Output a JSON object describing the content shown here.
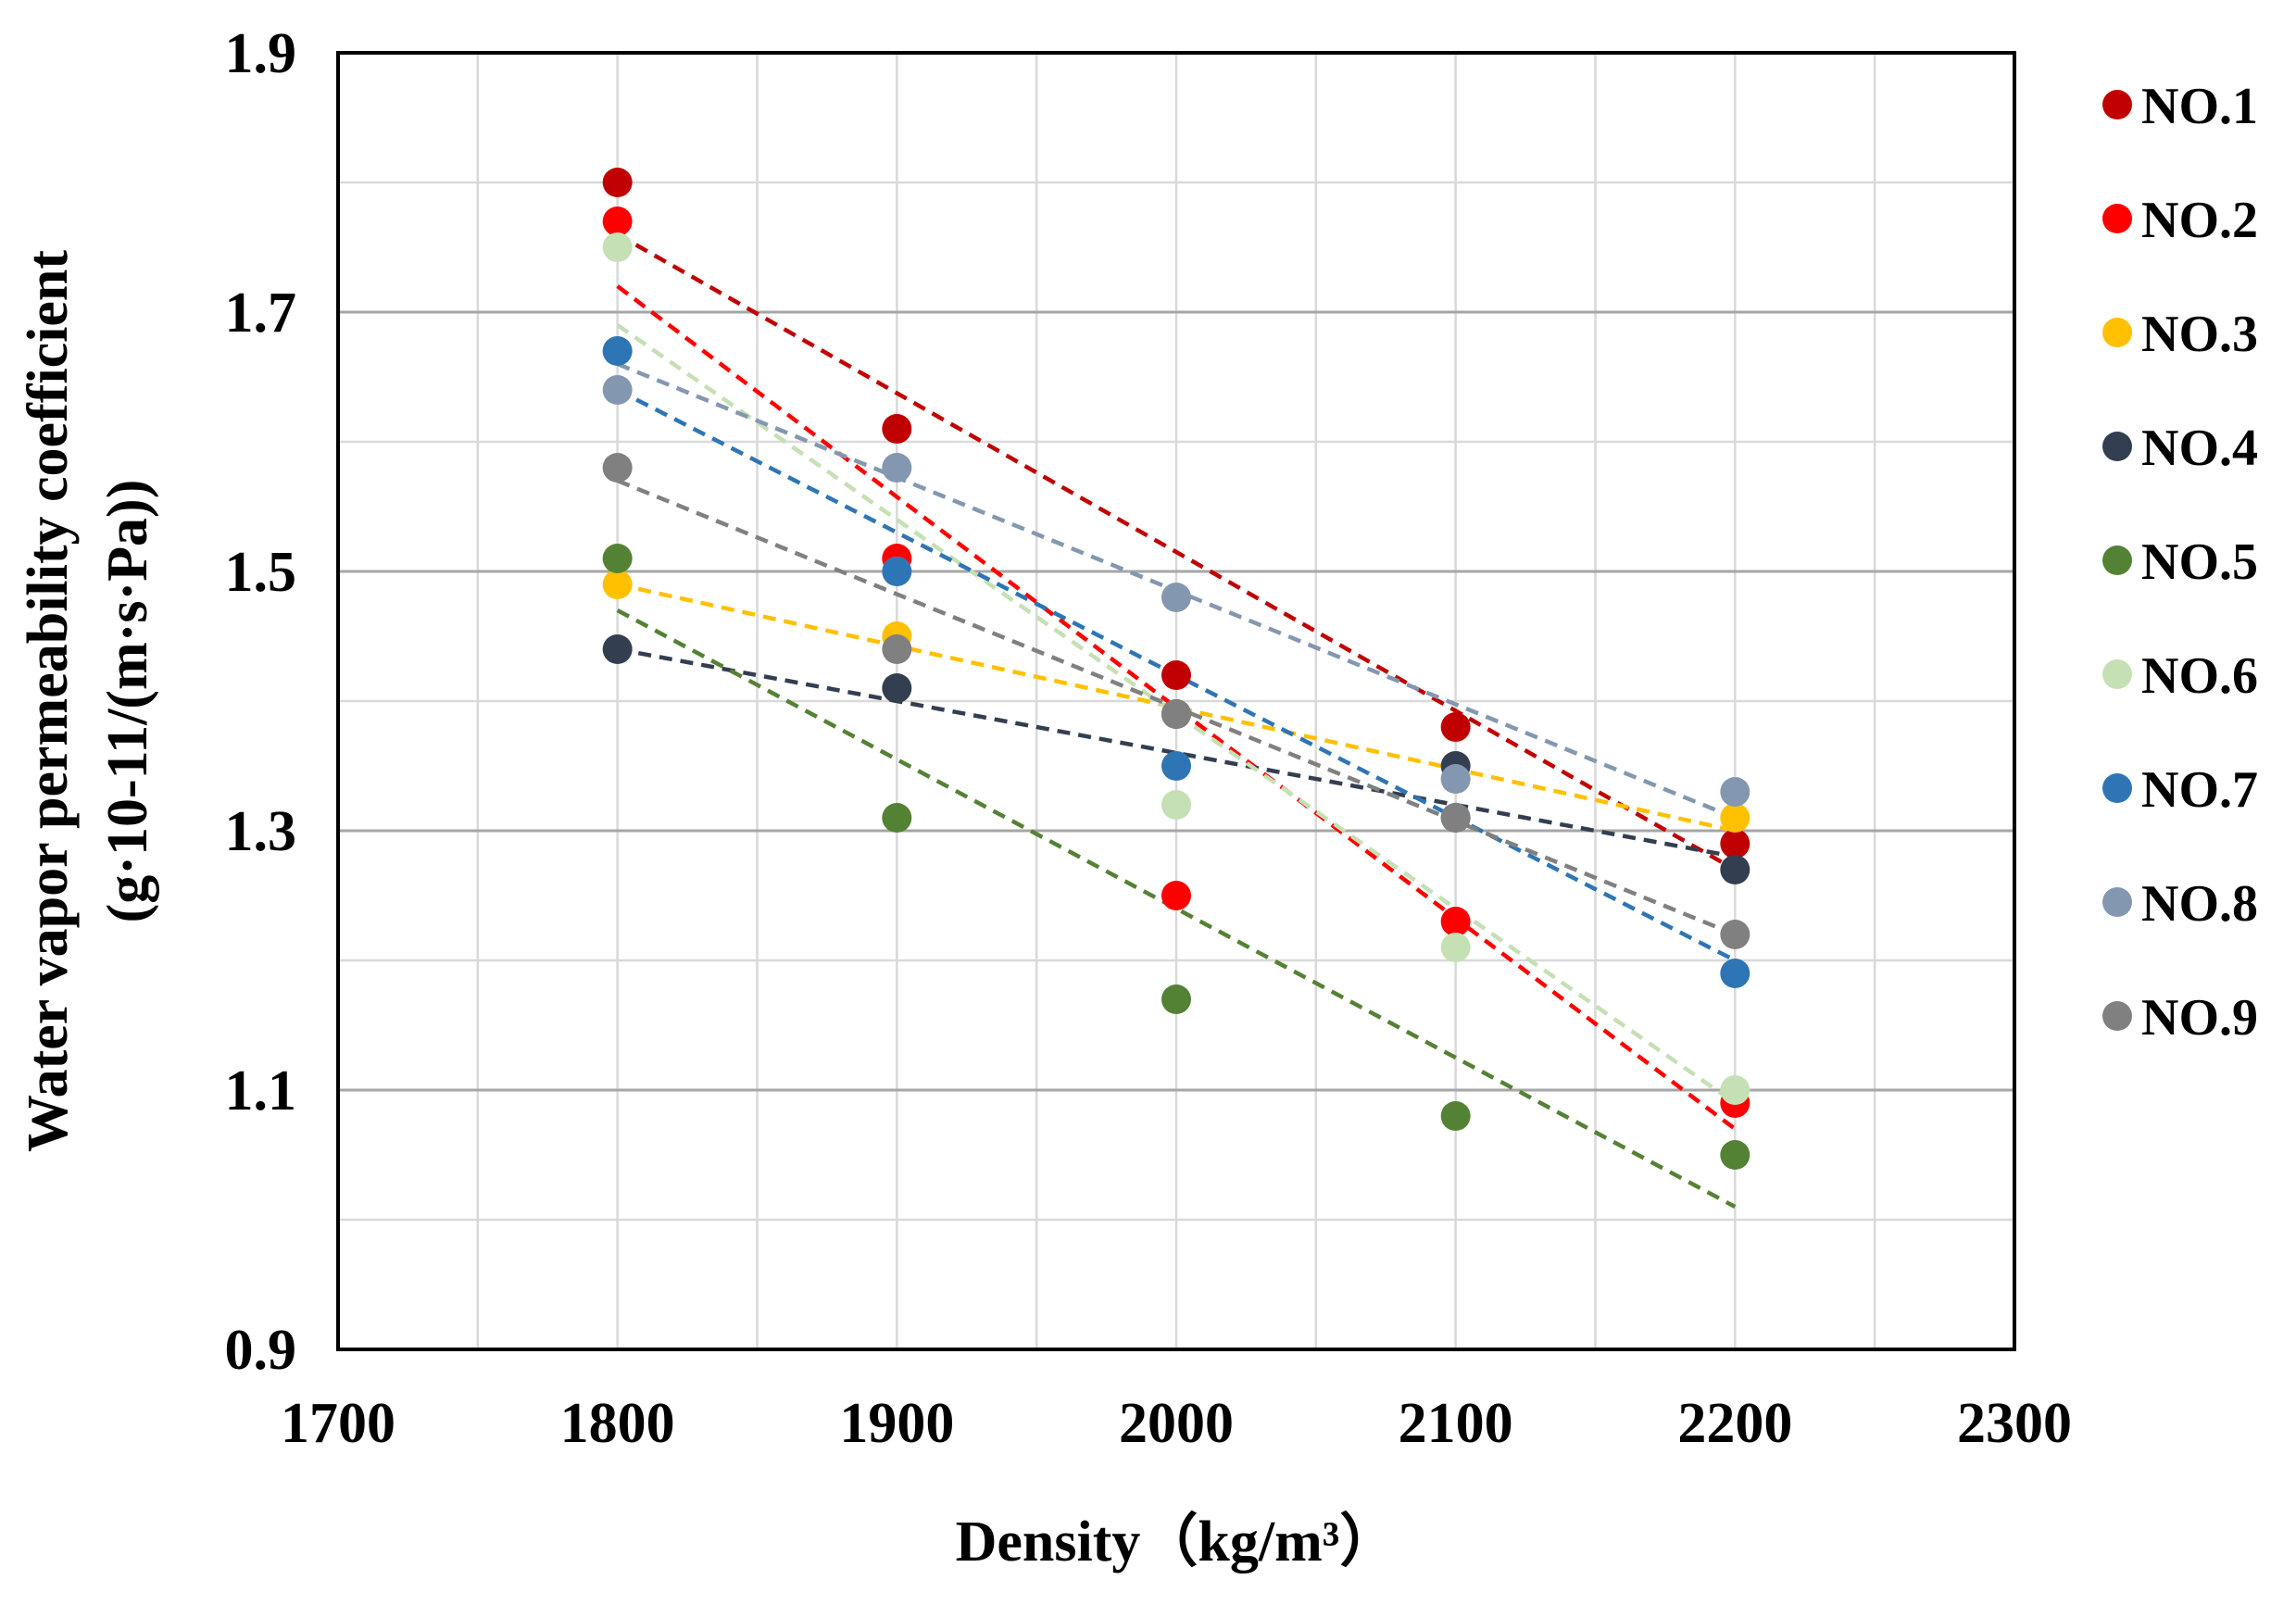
{
  "chart_data": {
    "type": "scatter",
    "title": "",
    "xlabel": "Density（kg/m³）",
    "ylabel": {
      "line1": "Water vapor permeability coefficient",
      "line2": "(g·10-11/(m·s·Pa))"
    },
    "xlim": [
      1700,
      2300
    ],
    "ylim": [
      0.9,
      1.9
    ],
    "x_ticks": [
      "1700",
      "1800",
      "1900",
      "2000",
      "2100",
      "2200",
      "2300"
    ],
    "y_ticks": [
      "0.9",
      "1.1",
      "1.3",
      "1.5",
      "1.7",
      "1.9"
    ],
    "x_minor_step": 50,
    "y_minor_step": 0.1,
    "grid": true,
    "legend_position": "right",
    "x": [
      1800,
      1900,
      2000,
      2100,
      2200
    ],
    "series": [
      {
        "name": "NO.1",
        "color": "#c00000",
        "values": [
          1.8,
          1.61,
          1.42,
          1.38,
          1.29
        ],
        "trend": [
          1.76,
          1.27
        ]
      },
      {
        "name": "NO.2",
        "color": "#ff0000",
        "values": [
          1.77,
          1.51,
          1.25,
          1.23,
          1.09
        ],
        "trend": [
          1.72,
          1.07
        ]
      },
      {
        "name": "NO.3",
        "color": "#ffc000",
        "values": [
          1.49,
          1.45,
          1.39,
          1.34,
          1.31
        ],
        "trend": [
          1.49,
          1.3
        ]
      },
      {
        "name": "NO.4",
        "color": "#333f50",
        "values": [
          1.44,
          1.41,
          1.39,
          1.35,
          1.27
        ],
        "trend": [
          1.44,
          1.28
        ]
      },
      {
        "name": "NO.5",
        "color": "#548235",
        "values": [
          1.51,
          1.31,
          1.17,
          1.08,
          1.05
        ],
        "trend": [
          1.47,
          1.01
        ]
      },
      {
        "name": "NO.6",
        "color": "#c5e0b4",
        "values": [
          1.75,
          1.5,
          1.32,
          1.21,
          1.1
        ],
        "trend": [
          1.69,
          1.09
        ]
      },
      {
        "name": "NO.7",
        "color": "#2e75b6",
        "values": [
          1.67,
          1.5,
          1.35,
          1.31,
          1.19
        ],
        "trend": [
          1.64,
          1.2
        ]
      },
      {
        "name": "NO.8",
        "color": "#8497b0",
        "values": [
          1.64,
          1.58,
          1.48,
          1.34,
          1.33
        ],
        "trend": [
          1.66,
          1.31
        ]
      },
      {
        "name": "NO.9",
        "color": "#808080",
        "values": [
          1.58,
          1.44,
          1.39,
          1.31,
          1.22
        ],
        "trend": [
          1.57,
          1.22
        ]
      }
    ]
  }
}
